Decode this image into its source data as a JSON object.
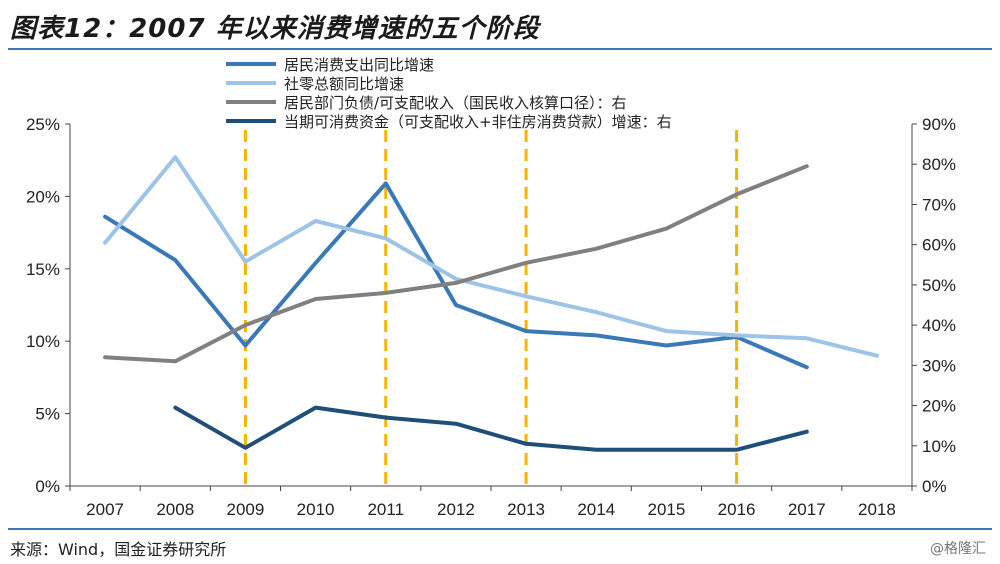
{
  "title": "图表12：2007 年以来消费增速的五个阶段",
  "source": "来源：Wind，国金证券研究所",
  "watermark": "@格隆汇",
  "chart_data": {
    "type": "line",
    "categories": [
      "2007",
      "2008",
      "2009",
      "2010",
      "2011",
      "2012",
      "2013",
      "2014",
      "2015",
      "2016",
      "2017",
      "2018"
    ],
    "left_axis": {
      "ticks": [
        "0%",
        "5%",
        "10%",
        "15%",
        "20%",
        "25%"
      ],
      "ylim": [
        0,
        25
      ]
    },
    "right_axis": {
      "ticks": [
        "0%",
        "10%",
        "20%",
        "30%",
        "40%",
        "50%",
        "60%",
        "70%",
        "80%",
        "90%"
      ],
      "ylim": [
        0,
        90
      ]
    },
    "stage_dividers": [
      "2009",
      "2011",
      "2013",
      "2016"
    ],
    "legend_position": "top-center",
    "series": [
      {
        "name": "居民消费支出同比增速",
        "axis": "left",
        "color": "#3a79b7",
        "values": [
          18.6,
          15.6,
          9.7,
          15.4,
          20.9,
          12.5,
          10.7,
          10.4,
          9.7,
          10.3,
          8.2,
          null
        ]
      },
      {
        "name": "社零总额同比增速",
        "axis": "left",
        "color": "#9dc3e6",
        "values": [
          16.8,
          22.7,
          15.5,
          18.3,
          17.1,
          14.3,
          13.1,
          12.0,
          10.7,
          10.4,
          10.2,
          9.0
        ]
      },
      {
        "name": "居民部门负债/可支配收入（国民收入核算口径）：右",
        "axis": "right",
        "color": "#808080",
        "values": [
          32,
          31,
          40,
          46.5,
          48,
          50.5,
          55.5,
          59,
          64,
          72.5,
          79.5,
          null
        ]
      },
      {
        "name": "当期可消费资金（可支配收入+非住房消费贷款）增速：右",
        "axis": "right",
        "color": "#1f4e79",
        "values": [
          null,
          19.5,
          9.5,
          19.5,
          17,
          15.5,
          10.5,
          9,
          9,
          9,
          13.5,
          null
        ]
      }
    ]
  }
}
